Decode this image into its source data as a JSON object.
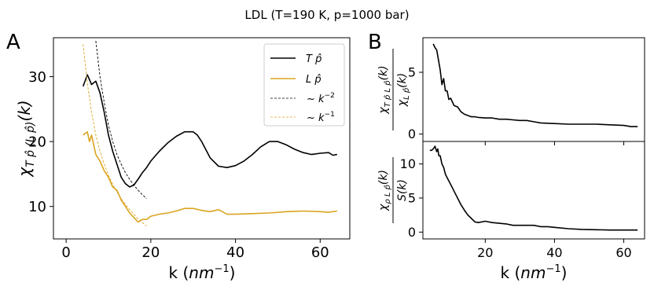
{
  "suptitle": "LDL (T=190 K, p=1000 bar)",
  "colors": {
    "black": "#000000",
    "gold": "#DAA520"
  },
  "chart_data": [
    {
      "panel_label": "A",
      "type": "line",
      "xlabel": "k (nm⁻¹)",
      "ylabel": "χ T̂p (L̂p)(k)",
      "xlim": [
        -3,
        67
      ],
      "ylim": [
        5,
        36
      ],
      "xticks": [
        0,
        20,
        40,
        60
      ],
      "yticks": [
        10,
        20,
        30
      ],
      "xtick_labels": [
        "0",
        "20",
        "40",
        "60"
      ],
      "ytick_labels": [
        "10",
        "20",
        "30"
      ],
      "legend_position": "top-right",
      "series": [
        {
          "name": "T̂p",
          "style": "solid",
          "color": "#000000",
          "x": [
            4,
            5,
            6,
            7,
            8,
            9,
            10,
            11,
            12,
            13,
            14,
            15,
            16,
            17,
            18,
            19,
            20,
            22,
            24,
            26,
            28,
            30,
            31,
            32,
            34,
            36,
            38,
            40,
            42,
            44,
            46,
            48,
            50,
            52,
            54,
            56,
            58,
            60,
            62,
            63,
            64
          ],
          "y": [
            28.5,
            30.3,
            28.8,
            29.3,
            27.5,
            24.5,
            21.0,
            18.5,
            16.5,
            14.5,
            13.5,
            13.0,
            13.3,
            14.2,
            15.2,
            16.0,
            17.0,
            18.5,
            19.8,
            20.8,
            21.5,
            21.5,
            21.0,
            20.0,
            17.5,
            16.2,
            16.0,
            16.3,
            17.0,
            18.0,
            19.2,
            20.0,
            20.0,
            19.5,
            18.8,
            18.3,
            18.0,
            18.2,
            18.3,
            17.9,
            18.0
          ]
        },
        {
          "name": "L̂p",
          "style": "solid",
          "color": "#DAA520",
          "x": [
            4,
            5,
            5.5,
            6,
            7,
            8,
            9,
            10,
            11,
            12,
            13,
            14,
            15,
            16,
            17,
            18,
            19,
            20,
            22,
            24,
            26,
            28,
            30,
            32,
            34,
            36,
            38,
            40,
            44,
            48,
            52,
            56,
            60,
            62,
            64
          ],
          "y": [
            21.0,
            21.5,
            20.0,
            21.0,
            18.0,
            17.0,
            15.5,
            14.5,
            13.0,
            12.5,
            11.0,
            10.0,
            9.0,
            8.3,
            7.6,
            8.0,
            8.0,
            8.5,
            8.8,
            9.0,
            9.3,
            9.7,
            9.7,
            9.4,
            9.2,
            9.5,
            8.8,
            8.8,
            8.9,
            9.0,
            9.2,
            9.3,
            9.2,
            9.1,
            9.3
          ]
        },
        {
          "name": "~ k⁻²",
          "style": "dashed",
          "color": "#000000",
          "x": [
            7,
            8,
            9,
            10,
            11,
            12,
            13,
            14,
            15,
            16,
            17,
            18,
            19
          ],
          "y": [
            35.5,
            30.0,
            26.0,
            22.5,
            20.0,
            18.0,
            16.5,
            15.2,
            14.2,
            13.3,
            12.5,
            11.8,
            11.2
          ]
        },
        {
          "name": "~ k⁻¹",
          "style": "dashed",
          "color": "#DAA520",
          "x": [
            4,
            5,
            6,
            7,
            8,
            9,
            10,
            11,
            12,
            13,
            14,
            15,
            16,
            17,
            18,
            19
          ],
          "y": [
            35.0,
            29.0,
            24.5,
            21.0,
            18.5,
            16.5,
            14.8,
            13.4,
            12.2,
            11.2,
            10.3,
            9.5,
            8.8,
            8.1,
            7.5,
            7.0
          ]
        }
      ]
    },
    {
      "panel_label": "B",
      "type": "line",
      "ylabel_num": "χ T̂pL̂p(k)",
      "ylabel_den": "χ L̂p(k)",
      "xlim": [
        2,
        66
      ],
      "ylim": [
        -0.6,
        7.8
      ],
      "xticks": [
        20,
        40,
        60
      ],
      "yticks": [
        0,
        5
      ],
      "ytick_labels": [
        "0",
        "5"
      ],
      "series": [
        {
          "name": "",
          "style": "solid",
          "color": "#000000",
          "x": [
            5,
            5.5,
            6,
            6.5,
            7,
            7.5,
            8,
            8.5,
            9,
            9.5,
            10,
            11,
            12,
            13,
            14,
            15,
            16,
            17,
            18,
            20,
            22,
            24,
            26,
            28,
            30,
            32,
            34,
            36,
            40,
            44,
            48,
            52,
            56,
            60,
            62,
            64
          ],
          "y": [
            7.3,
            7.0,
            6.8,
            6.0,
            5.2,
            4.0,
            4.5,
            3.5,
            3.5,
            2.8,
            2.9,
            2.3,
            2.2,
            1.8,
            1.6,
            1.5,
            1.4,
            1.4,
            1.35,
            1.3,
            1.3,
            1.2,
            1.2,
            1.15,
            1.1,
            1.1,
            1.0,
            0.9,
            0.85,
            0.8,
            0.8,
            0.8,
            0.75,
            0.7,
            0.6,
            0.6
          ]
        }
      ]
    },
    {
      "type": "line",
      "xlabel": "k (nm⁻¹)",
      "ylabel_num": "χ ρL̂p(k)",
      "ylabel_den": "S(k)",
      "xlim": [
        2,
        66
      ],
      "ylim": [
        -1,
        13.3
      ],
      "xticks": [
        20,
        40,
        60
      ],
      "yticks": [
        0,
        5,
        10
      ],
      "xtick_labels": [
        "20",
        "40",
        "60"
      ],
      "ytick_labels": [
        "0",
        "5",
        "10"
      ],
      "series": [
        {
          "name": "",
          "style": "solid",
          "color": "#000000",
          "x": [
            4,
            4.5,
            5,
            5.5,
            6,
            6.3,
            6.6,
            7,
            7.5,
            8,
            8.5,
            9,
            9.5,
            10,
            11,
            12,
            13,
            14,
            15,
            16,
            17,
            18,
            20,
            22,
            24,
            26,
            28,
            30,
            32,
            34,
            36,
            38,
            40,
            44,
            48,
            52,
            56,
            60,
            64
          ],
          "y": [
            12.0,
            12.0,
            12.2,
            12.6,
            11.8,
            12.2,
            11.2,
            11.2,
            10.0,
            9.5,
            8.5,
            8.0,
            7.5,
            7.0,
            6.0,
            5.0,
            4.0,
            3.2,
            2.5,
            2.0,
            1.5,
            1.4,
            1.6,
            1.4,
            1.3,
            1.2,
            1.0,
            1.0,
            1.0,
            1.0,
            0.8,
            0.8,
            0.7,
            0.5,
            0.4,
            0.35,
            0.3,
            0.3,
            0.3
          ]
        }
      ]
    }
  ]
}
